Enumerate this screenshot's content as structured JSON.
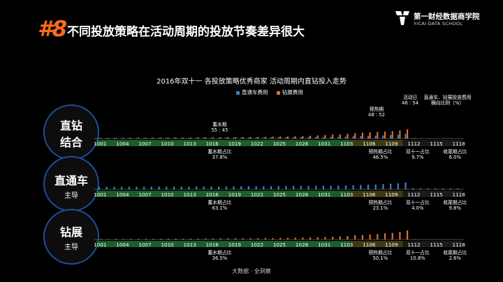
{
  "header": {
    "number": "#8",
    "title": "不同投放策略在活动周期的投放节奏差异很大"
  },
  "logo": {
    "name": "第一财经数据商学院",
    "subtitle": "YICAI DATA SCHOOL"
  },
  "circles": [
    {
      "main": "直钻",
      "main2": "结合",
      "sub": ""
    },
    {
      "main": "直通车",
      "main2": "",
      "sub": "主导"
    },
    {
      "main": "钻展",
      "main2": "",
      "sub": "主导"
    }
  ],
  "source": "大数据 · 全洞察",
  "colors": {
    "blue": "#3b7fd0",
    "orange": "#e0702a",
    "seg_green": "#1b5e2a",
    "seg_olive": "#3e3a12",
    "seg_dark": "#1a1a1a",
    "circle_border": "#1f4f9c"
  },
  "chart_data": {
    "type": "bar",
    "title": "2016年双十一 各投放策略优秀商家 活动周期内直钻投入走势",
    "legend": [
      "直通车费用",
      "钻展费用"
    ],
    "series_colors": [
      "blue",
      "orange"
    ],
    "tick_labels": [
      "1001",
      "1004",
      "1007",
      "1010",
      "1013",
      "1016",
      "1019",
      "1022",
      "1025",
      "1028",
      "1031",
      "1103",
      "1106",
      "1109",
      "1112",
      "1115",
      "1118"
    ],
    "n_days": 49,
    "period_boundaries": [
      0,
      34,
      41,
      42,
      49
    ],
    "panels": [
      {
        "name": "直钻结合",
        "ymax": 45,
        "blue": [
          0.8,
          0.8,
          0.9,
          0.8,
          0.9,
          0.9,
          0.8,
          0.9,
          1,
          0.9,
          1,
          1,
          0.9,
          1,
          1.1,
          1,
          1.1,
          1.2,
          1.2,
          1.2,
          1.3,
          1.3,
          1.4,
          1.4,
          1.5,
          1.5,
          1.6,
          1.7,
          1.8,
          1.9,
          2,
          2.1,
          2.2,
          2.3,
          3,
          3.2,
          3.5,
          3.8,
          4,
          4.5,
          5,
          6,
          0.6,
          0.3,
          0.3,
          0.2,
          0.2,
          0.2,
          0.2
        ],
        "orange": [
          0.8,
          0.9,
          0.9,
          1,
          1,
          1,
          1.1,
          1.1,
          1.2,
          1.2,
          1.3,
          1.3,
          1.3,
          1.4,
          1.5,
          1.5,
          1.6,
          1.7,
          1.8,
          1.9,
          2,
          2.1,
          2.2,
          2.4,
          2.6,
          2.8,
          3,
          3.3,
          3.6,
          4,
          4.5,
          5,
          5.5,
          6,
          7,
          7.5,
          8,
          8.5,
          9,
          9.5,
          10.5,
          12,
          0.6,
          0.3,
          0.3,
          0.2,
          0.2,
          0.2,
          0.2
        ],
        "annotations": [
          {
            "label": "蓄水期",
            "value": "55 : 45",
            "day": 16,
            "pos": "above"
          },
          {
            "label": "预热期",
            "value": "48 : 52",
            "day": 37,
            "pos": "above"
          },
          {
            "label": "活动日",
            "value": "46 : 54",
            "day": 41.5,
            "pos": "above"
          },
          {
            "label": "直通车、钻展投放费用",
            "value": "横向比例（%）",
            "day": 46.5,
            "pos": "above"
          },
          {
            "label": "蓄水期占比",
            "value": "37.8%",
            "day": 16,
            "pos": "below"
          },
          {
            "label": "预热期占比",
            "value": "46.5%",
            "day": 37.5,
            "pos": "below"
          },
          {
            "label": "双十一占比",
            "value": "9.7%",
            "day": 42.5,
            "pos": "below"
          },
          {
            "label": "收尾期占比",
            "value": "6.0%",
            "day": 47.5,
            "pos": "below"
          }
        ]
      },
      {
        "name": "直通车主导",
        "ymax": 24,
        "blue": [
          4,
          4,
          4,
          4,
          4.2,
          4.2,
          4.2,
          4.3,
          4.4,
          4.4,
          4.5,
          4.5,
          4.5,
          4.6,
          4.6,
          4.7,
          4.7,
          4.8,
          4.8,
          4.9,
          5,
          5,
          5.1,
          5.1,
          5.2,
          5.2,
          5.3,
          5.4,
          5.5,
          5.6,
          5.7,
          5.8,
          6,
          6.2,
          6.6,
          7,
          7.4,
          7.8,
          8.3,
          8.9,
          9.5,
          11,
          2.2,
          1.8,
          1.7,
          1.7,
          1.7,
          1.7,
          1.7
        ],
        "orange": [
          0.1,
          0.1,
          0.1,
          0.1,
          0.1,
          0.1,
          0.1,
          0.1,
          0.1,
          0.1,
          0.1,
          0.1,
          0.1,
          0.1,
          0.1,
          0.1,
          0.1,
          0.1,
          0.1,
          0.1,
          0.1,
          0.1,
          0.1,
          0.1,
          0.1,
          0.1,
          0.1,
          0.1,
          0.1,
          0.1,
          0.1,
          0.1,
          0.1,
          0.1,
          0.2,
          0.2,
          0.2,
          0.2,
          0.2,
          0.2,
          0.3,
          0.5,
          0.1,
          0.1,
          0.1,
          0.1,
          0.1,
          0.1,
          0.1
        ],
        "annotations": [
          {
            "label": "蓄水期占比",
            "value": "63.1%",
            "day": 16,
            "pos": "below"
          },
          {
            "label": "预热期占比",
            "value": "23.1%",
            "day": 37.5,
            "pos": "below"
          },
          {
            "label": "双十一占比",
            "value": "4.0%",
            "day": 42.5,
            "pos": "below"
          },
          {
            "label": "收尾期占比",
            "value": "9.8%",
            "day": 47.5,
            "pos": "below"
          }
        ]
      },
      {
        "name": "钻展主导",
        "ymax": 30,
        "blue": [
          0.1,
          0.1,
          0.1,
          0.1,
          0.1,
          0.1,
          0.1,
          0.1,
          0.1,
          0.1,
          0.1,
          0.1,
          0.1,
          0.1,
          0.1,
          0.1,
          0.1,
          0.1,
          0.1,
          0.1,
          0.1,
          0.1,
          0.1,
          0.1,
          0.1,
          0.1,
          0.1,
          0.1,
          0.1,
          0.1,
          0.1,
          0.1,
          0.1,
          0.1,
          0.2,
          0.2,
          0.2,
          0.2,
          0.2,
          0.2,
          0.3,
          0.3,
          0.1,
          0.1,
          0.1,
          0.1,
          0.1,
          0.1,
          0.1
        ],
        "orange": [
          0.8,
          0.8,
          0.9,
          0.9,
          0.9,
          1,
          1,
          1,
          1.1,
          1.1,
          1.2,
          1.2,
          1.3,
          1.3,
          1.4,
          1.4,
          1.5,
          1.6,
          1.6,
          1.7,
          1.8,
          1.9,
          2,
          2.1,
          2.2,
          2.4,
          2.6,
          2.8,
          3,
          3.3,
          3.6,
          4,
          4.5,
          5,
          6,
          6.5,
          7.2,
          8,
          8.8,
          9.5,
          11,
          13,
          0.6,
          0.3,
          0.3,
          0.2,
          0.2,
          0.2,
          0.2
        ],
        "annotations": [
          {
            "label": "蓄水期占比",
            "value": "36.5%",
            "day": 16,
            "pos": "below"
          },
          {
            "label": "预热期占比",
            "value": "50.1%",
            "day": 37.5,
            "pos": "below"
          },
          {
            "label": "双十一占比",
            "value": "10.8%",
            "day": 42.5,
            "pos": "below"
          },
          {
            "label": "收尾期占比",
            "value": "2.6%",
            "day": 47.5,
            "pos": "below"
          }
        ]
      }
    ]
  }
}
